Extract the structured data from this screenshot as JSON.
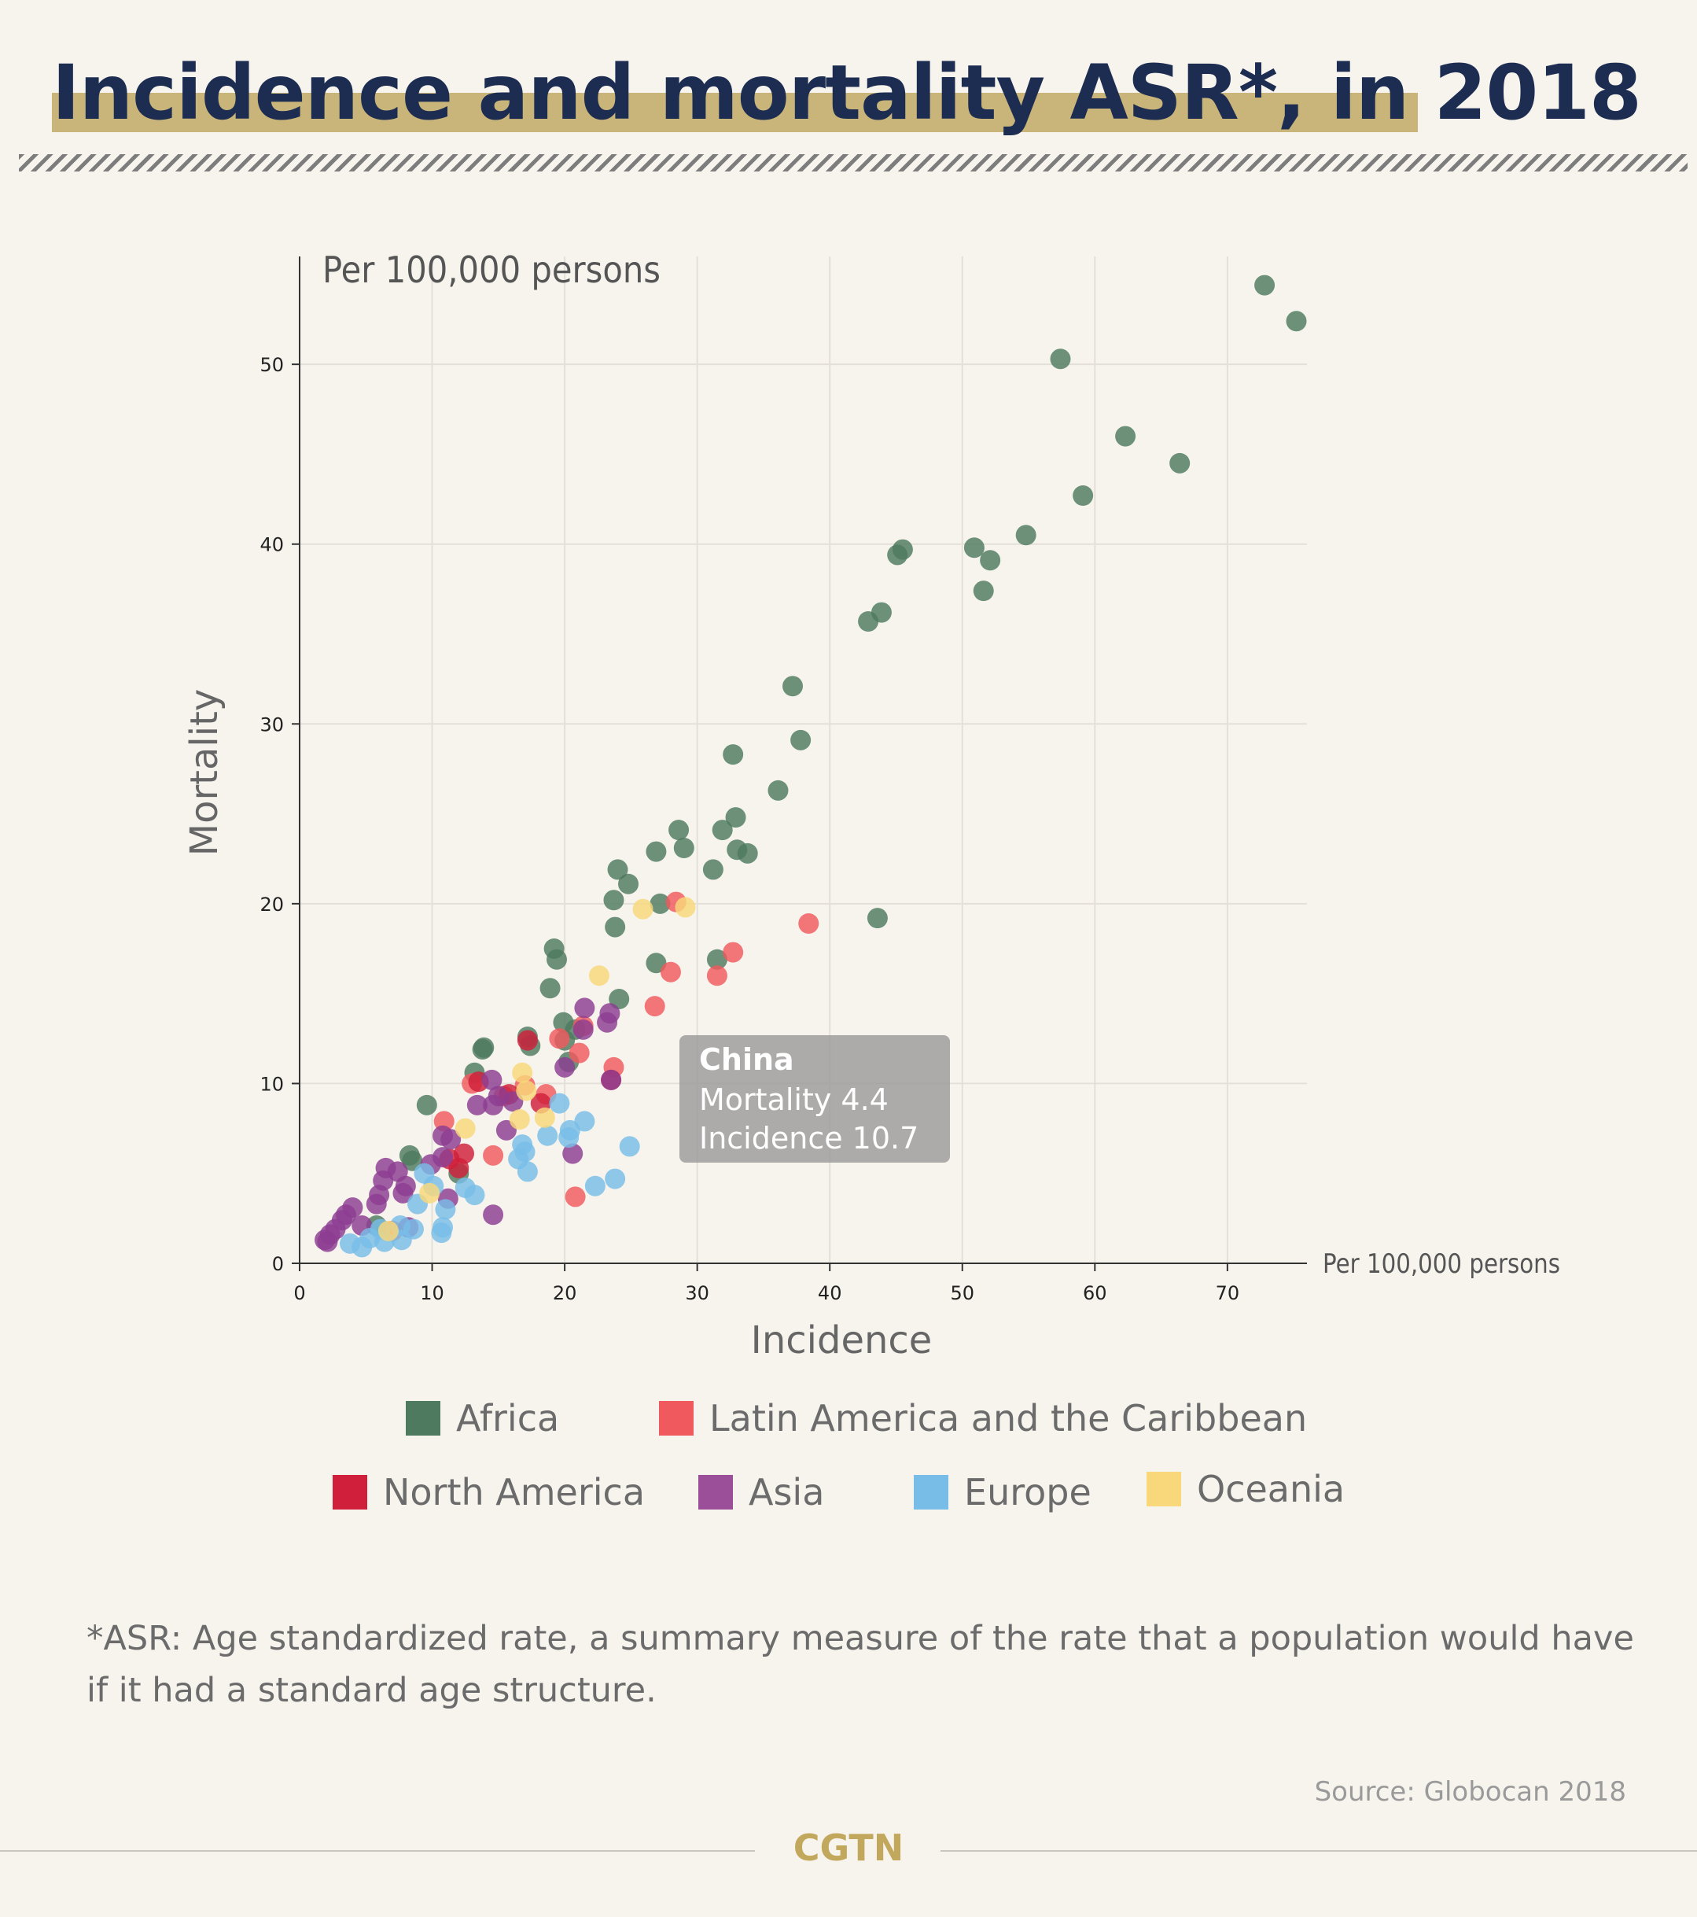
{
  "header": {
    "title": "Incidence and mortality ASR*, in 2018"
  },
  "footnote": "*ASR: Age standardized rate, a summary measure of the rate that a population would have if it had a standard age structure.",
  "source": "Source: Globocan 2018",
  "brand": "CGTN",
  "chart_data": {
    "type": "scatter",
    "title": "Incidence and mortality ASR*, in 2018",
    "xlabel": "Incidence",
    "ylabel": "Mortality",
    "x_unit": "Per 100,000 persons",
    "y_unit": "Per 100,000 persons",
    "xlim": [
      0,
      76
    ],
    "ylim": [
      0,
      56
    ],
    "xticks": [
      0,
      10,
      20,
      30,
      40,
      50,
      60,
      70
    ],
    "yticks": [
      0,
      10,
      20,
      30,
      40,
      50
    ],
    "grid": true,
    "legend": "bottom",
    "annotation": {
      "title": "China",
      "line1": "Mortality 4.4",
      "line2": "Incidence 10.7"
    },
    "series": [
      {
        "name": "Africa",
        "color": "#4e7a5f",
        "points": [
          [
            72.8,
            54.4
          ],
          [
            75.2,
            52.4
          ],
          [
            57.4,
            50.3
          ],
          [
            62.3,
            46.0
          ],
          [
            66.4,
            44.5
          ],
          [
            59.1,
            42.7
          ],
          [
            54.8,
            40.5
          ],
          [
            50.9,
            39.8
          ],
          [
            52.1,
            39.1
          ],
          [
            45.5,
            39.7
          ],
          [
            45.1,
            39.4
          ],
          [
            51.6,
            37.4
          ],
          [
            43.9,
            36.2
          ],
          [
            42.9,
            35.7
          ],
          [
            37.2,
            32.1
          ],
          [
            37.8,
            29.1
          ],
          [
            32.7,
            28.3
          ],
          [
            36.1,
            26.3
          ],
          [
            28.6,
            24.1
          ],
          [
            32.9,
            24.8
          ],
          [
            31.9,
            24.1
          ],
          [
            29.0,
            23.1
          ],
          [
            26.9,
            22.9
          ],
          [
            33.0,
            23.0
          ],
          [
            33.8,
            22.8
          ],
          [
            24.0,
            21.9
          ],
          [
            24.8,
            21.1
          ],
          [
            31.2,
            21.9
          ],
          [
            23.7,
            20.2
          ],
          [
            27.2,
            20.0
          ],
          [
            23.8,
            18.7
          ],
          [
            43.6,
            19.2
          ],
          [
            19.2,
            17.5
          ],
          [
            19.4,
            16.9
          ],
          [
            26.9,
            16.7
          ],
          [
            31.5,
            16.9
          ],
          [
            18.9,
            15.3
          ],
          [
            24.1,
            14.7
          ],
          [
            19.9,
            13.4
          ],
          [
            20.8,
            13.0
          ],
          [
            20.0,
            12.4
          ],
          [
            17.2,
            12.6
          ],
          [
            17.4,
            12.1
          ],
          [
            13.8,
            11.9
          ],
          [
            13.9,
            12.0
          ],
          [
            20.3,
            11.2
          ],
          [
            13.2,
            10.6
          ],
          [
            9.6,
            8.8
          ],
          [
            8.3,
            6.0
          ],
          [
            8.5,
            5.7
          ],
          [
            12.0,
            5.0
          ],
          [
            5.8,
            2.1
          ]
        ]
      },
      {
        "name": "Latin America and the Caribbean",
        "color": "#f0595d",
        "points": [
          [
            38.4,
            18.9
          ],
          [
            28.4,
            20.1
          ],
          [
            32.7,
            17.3
          ],
          [
            28.0,
            16.2
          ],
          [
            31.5,
            16.0
          ],
          [
            26.8,
            14.3
          ],
          [
            21.4,
            13.2
          ],
          [
            19.6,
            12.5
          ],
          [
            21.1,
            11.7
          ],
          [
            23.7,
            10.9
          ],
          [
            13.0,
            10.0
          ],
          [
            17.0,
            9.9
          ],
          [
            15.4,
            9.3
          ],
          [
            18.6,
            9.4
          ],
          [
            10.9,
            7.9
          ],
          [
            14.6,
            6.0
          ],
          [
            20.8,
            3.7
          ],
          [
            7.0,
            1.8
          ]
        ]
      },
      {
        "name": "North America",
        "color": "#cf1f3b",
        "points": [
          [
            17.2,
            12.4
          ],
          [
            13.5,
            10.1
          ],
          [
            23.5,
            10.2
          ],
          [
            15.8,
            9.4
          ],
          [
            18.2,
            8.9
          ],
          [
            12.4,
            6.1
          ],
          [
            11.3,
            5.8
          ],
          [
            12.0,
            5.3
          ]
        ]
      },
      {
        "name": "Asia",
        "color": "#8c3d91",
        "points": [
          [
            21.5,
            14.2
          ],
          [
            23.4,
            13.9
          ],
          [
            23.2,
            13.4
          ],
          [
            21.4,
            13.0
          ],
          [
            20.0,
            10.9
          ],
          [
            14.5,
            10.2
          ],
          [
            23.5,
            10.2
          ],
          [
            13.4,
            8.8
          ],
          [
            14.6,
            8.8
          ],
          [
            16.1,
            9.0
          ],
          [
            15.0,
            9.3
          ],
          [
            10.8,
            7.1
          ],
          [
            11.4,
            6.9
          ],
          [
            15.6,
            7.4
          ],
          [
            20.6,
            6.1
          ],
          [
            10.8,
            5.9
          ],
          [
            9.9,
            5.5
          ],
          [
            6.5,
            5.3
          ],
          [
            7.4,
            5.1
          ],
          [
            6.3,
            4.6
          ],
          [
            8.0,
            4.3
          ],
          [
            6.0,
            3.8
          ],
          [
            7.8,
            3.9
          ],
          [
            11.2,
            3.6
          ],
          [
            5.8,
            3.3
          ],
          [
            4.0,
            3.1
          ],
          [
            3.5,
            2.7
          ],
          [
            3.2,
            2.4
          ],
          [
            14.6,
            2.7
          ],
          [
            4.7,
            2.1
          ],
          [
            8.2,
            2.0
          ],
          [
            2.7,
            1.9
          ],
          [
            2.3,
            1.6
          ],
          [
            1.9,
            1.3
          ],
          [
            2.1,
            1.2
          ]
        ]
      },
      {
        "name": "Europe",
        "color": "#78bde8",
        "points": [
          [
            24.9,
            6.5
          ],
          [
            19.6,
            8.9
          ],
          [
            21.5,
            7.9
          ],
          [
            18.7,
            7.1
          ],
          [
            20.3,
            7.0
          ],
          [
            20.4,
            7.4
          ],
          [
            17.0,
            6.2
          ],
          [
            16.8,
            6.6
          ],
          [
            16.5,
            5.8
          ],
          [
            17.2,
            5.1
          ],
          [
            22.3,
            4.3
          ],
          [
            23.8,
            4.7
          ],
          [
            9.4,
            5.0
          ],
          [
            10.1,
            4.3
          ],
          [
            12.5,
            4.2
          ],
          [
            13.2,
            3.8
          ],
          [
            11.0,
            3.0
          ],
          [
            8.9,
            3.3
          ],
          [
            10.8,
            2.0
          ],
          [
            10.7,
            1.7
          ],
          [
            8.6,
            1.9
          ],
          [
            7.6,
            2.1
          ],
          [
            7.7,
            1.3
          ],
          [
            6.1,
            1.9
          ],
          [
            5.3,
            1.4
          ],
          [
            6.4,
            1.2
          ],
          [
            4.7,
            0.9
          ],
          [
            3.8,
            1.1
          ]
        ]
      },
      {
        "name": "Oceania",
        "color": "#f8d87a",
        "points": [
          [
            25.9,
            19.7
          ],
          [
            29.1,
            19.8
          ],
          [
            22.6,
            16.0
          ],
          [
            16.8,
            10.6
          ],
          [
            17.1,
            9.6
          ],
          [
            12.5,
            7.5
          ],
          [
            18.5,
            8.1
          ],
          [
            16.6,
            8.0
          ],
          [
            9.8,
            3.9
          ],
          [
            6.7,
            1.8
          ]
        ]
      }
    ]
  }
}
